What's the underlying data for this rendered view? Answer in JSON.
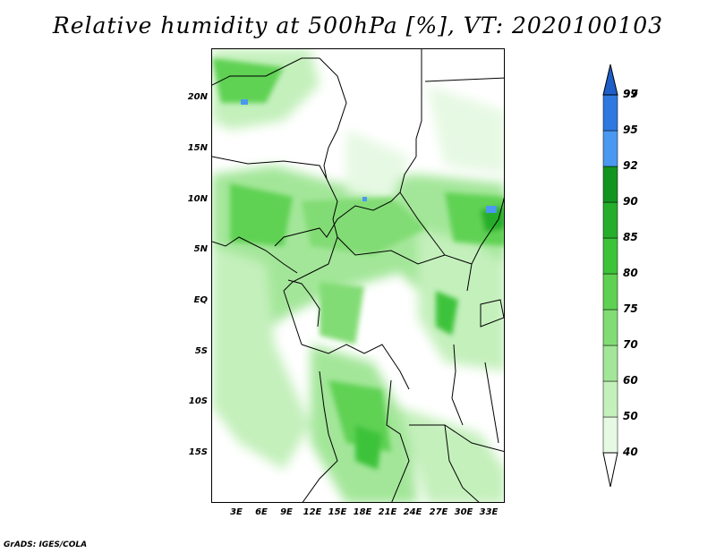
{
  "title": "Relative humidity at 500hPa [%], VT: 2020100103",
  "credit": "GrADS: IGES/COLA",
  "map": {
    "lat_labels": [
      "20N",
      "15N",
      "10N",
      "5N",
      "EQ",
      "5S",
      "10S",
      "15S"
    ],
    "lon_labels": [
      "3E",
      "6E",
      "9E",
      "12E",
      "15E",
      "18E",
      "21E",
      "24E",
      "27E",
      "30E",
      "33E"
    ]
  },
  "legend": {
    "levels": [
      "40",
      "50",
      "60",
      "70",
      "75",
      "80",
      "85",
      "90",
      "92",
      "95",
      "97",
      "99"
    ],
    "colors": [
      "#ffffff",
      "#e6f9e3",
      "#c4f0bc",
      "#a3e699",
      "#82dc75",
      "#5fd152",
      "#3cc33a",
      "#26ae2a",
      "#129520",
      "#4a98f0",
      "#2e78e0",
      "#1d5ec8"
    ]
  }
}
